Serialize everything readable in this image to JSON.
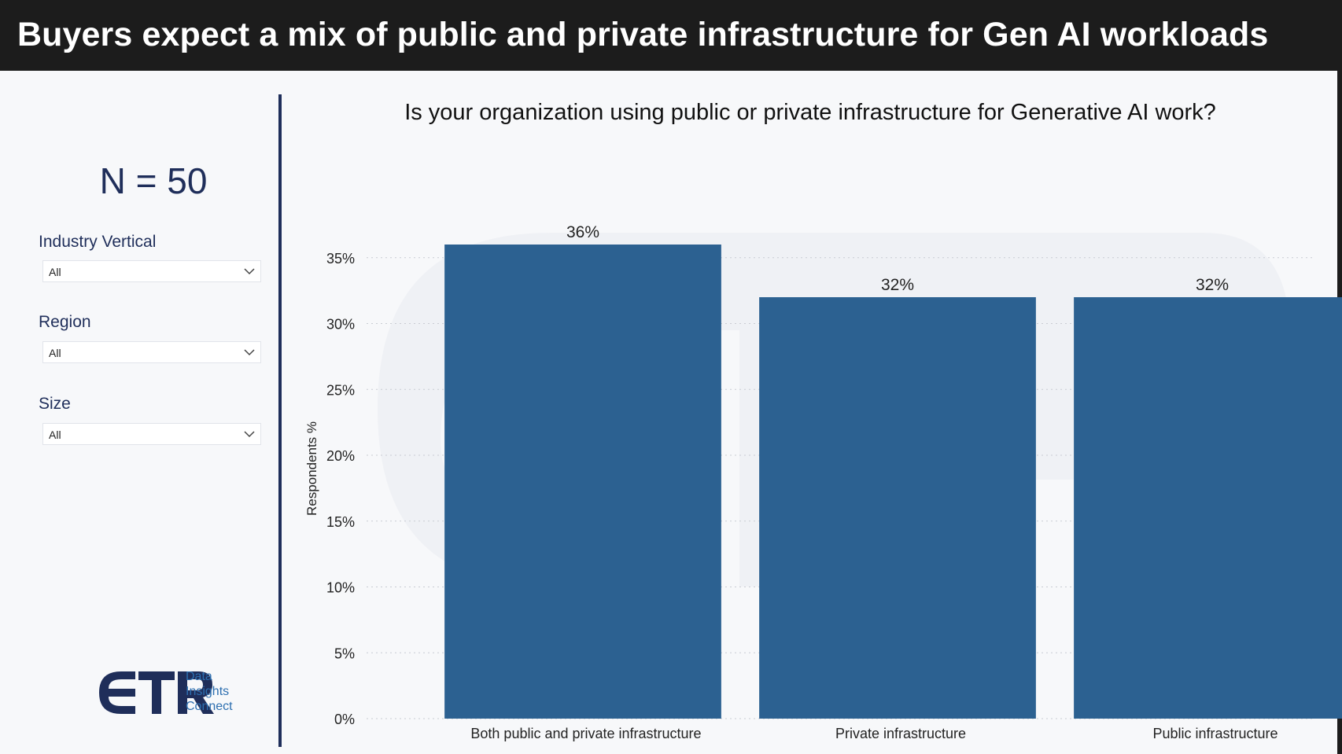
{
  "header": {
    "title": "Buyers expect a mix of public and private infrastructure for Gen AI workloads"
  },
  "sidebar": {
    "n_label": "N = 50",
    "filters": [
      {
        "label": "Industry Vertical",
        "value": "All"
      },
      {
        "label": "Region",
        "value": "All"
      },
      {
        "label": "Size",
        "value": "All"
      }
    ],
    "logo": {
      "mark": "ETR",
      "lines": [
        "Data",
        "Insights",
        "Connect"
      ]
    }
  },
  "colors": {
    "bar": "#2c6191",
    "header_bg": "#1c1c1c",
    "accent": "#1f2e5a",
    "logo_text": "#2d6fb0"
  },
  "chart_data": {
    "type": "bar",
    "title": "Is your organization using public or private infrastructure for Generative AI work?",
    "ylabel": "Respondents %",
    "xlabel": "",
    "categories": [
      "Both public and private infrastructure",
      "Private infrastructure",
      "Public infrastructure"
    ],
    "values": [
      36,
      32,
      32
    ],
    "data_labels": [
      "36%",
      "32%",
      "32%"
    ],
    "ylim": [
      0,
      36
    ],
    "yticks": [
      0,
      5,
      10,
      15,
      20,
      25,
      30,
      35
    ],
    "ytick_labels": [
      "0%",
      "5%",
      "10%",
      "15%",
      "20%",
      "25%",
      "30%",
      "35%"
    ],
    "grid": "horizontal dotted",
    "legend": "none",
    "watermark": "ETR Data Insights Connect"
  }
}
